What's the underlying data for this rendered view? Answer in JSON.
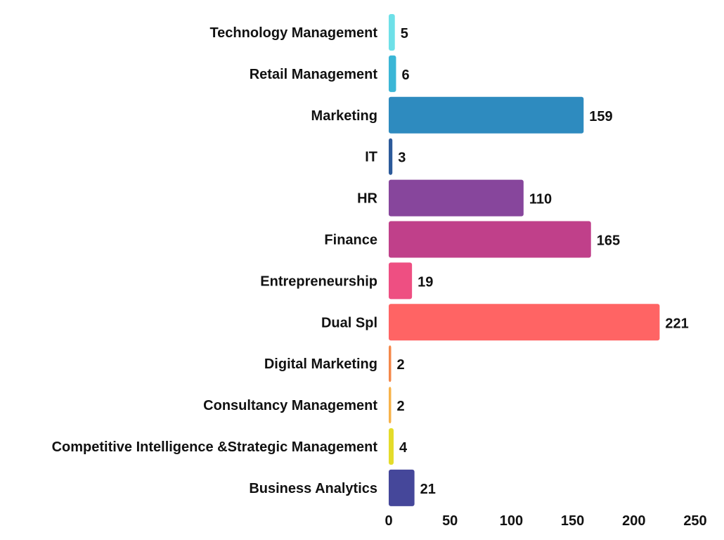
{
  "chart_data": {
    "type": "bar",
    "orientation": "horizontal",
    "categories": [
      "Technology Management",
      "Retail Management",
      "Marketing",
      "IT",
      "HR",
      "Finance",
      "Entrepreneurship",
      "Dual Spl",
      "Digital Marketing",
      "Consultancy Management",
      "Competitive Intelligence &Strategic Management",
      "Business Analytics"
    ],
    "values": [
      5,
      6,
      159,
      3,
      110,
      165,
      19,
      221,
      2,
      2,
      4,
      21
    ],
    "colors": [
      "#6ee0e8",
      "#3bb6d6",
      "#2e8bbf",
      "#2c5a9a",
      "#87469c",
      "#c0408a",
      "#ee4f82",
      "#ff6464",
      "#f4884a",
      "#f7b34a",
      "#e4dc2a",
      "#45479a"
    ],
    "xlim": [
      0,
      250
    ],
    "xticks": [
      "0",
      "50",
      "100",
      "150",
      "200",
      "250"
    ],
    "title": "",
    "xlabel": "",
    "ylabel": "",
    "grid": false,
    "legend": "none"
  }
}
